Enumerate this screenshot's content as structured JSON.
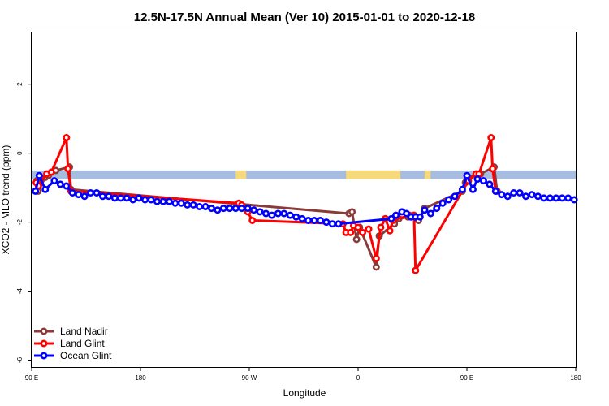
{
  "chart_data": {
    "type": "line",
    "title": "12.5N-17.5N Annual Mean (Ver 10)   2015-01-01 to 2020-12-18",
    "xlabel": "Longitude",
    "ylabel": "XCO2 - MLO trend (ppm)",
    "xlim": [
      90,
      450
    ],
    "ylim": [
      -6.2,
      3.5
    ],
    "x_ticks": [
      {
        "value": 90,
        "label": "90 E"
      },
      {
        "value": 162,
        "label": "180"
      },
      {
        "value": 234,
        "label": "90 W"
      },
      {
        "value": 306,
        "label": "0"
      },
      {
        "value": 378,
        "label": "90 E"
      },
      {
        "value": 450,
        "label": "180"
      }
    ],
    "y_ticks": [
      {
        "value": 2,
        "label": "2"
      },
      {
        "value": 0,
        "label": "0"
      },
      {
        "value": -2,
        "label": "-2"
      },
      {
        "value": -4,
        "label": "-4"
      },
      {
        "value": -6,
        "label": "-6"
      }
    ],
    "grid": false,
    "legend_position": "bottom-left",
    "land_band": {
      "y_top": -0.5,
      "y_bottom": -0.75,
      "ocean_color": "#a7bddf",
      "land_color": "#f5d97a",
      "land_x_ranges": [
        [
          225,
          232
        ],
        [
          298,
          334
        ],
        [
          350,
          354
        ]
      ]
    },
    "series": [
      {
        "name": "Land Nadir",
        "color": "#8b3a3a",
        "points": [
          [
            93.5,
            -0.8
          ],
          [
            94.2,
            -1.1
          ],
          [
            99,
            -0.7
          ],
          [
            101,
            -0.65
          ],
          [
            106,
            -0.5
          ],
          [
            115,
            -0.4
          ],
          [
            116,
            -1.05
          ],
          [
            300,
            -1.75
          ],
          [
            302,
            -1.7
          ],
          [
            305,
            -2.5
          ],
          [
            307,
            -2.15
          ],
          [
            318,
            -3.3
          ],
          [
            320,
            -2.4
          ],
          [
            330,
            -2.05
          ],
          [
            333,
            -1.9
          ],
          [
            339,
            -1.85
          ],
          [
            346,
            -1.95
          ],
          [
            350,
            -1.6
          ],
          [
            375,
            -1.1
          ],
          [
            377,
            -0.85
          ],
          [
            379,
            -0.7
          ],
          [
            385,
            -0.65
          ],
          [
            387,
            -0.6
          ],
          [
            396,
            -0.4
          ],
          [
            398,
            -1.1
          ]
        ]
      },
      {
        "name": "Land Glint",
        "color": "#ff0000",
        "points": [
          [
            93,
            -0.85
          ],
          [
            94.5,
            -0.95
          ],
          [
            100,
            -0.6
          ],
          [
            103,
            -0.55
          ],
          [
            113,
            0.45
          ],
          [
            114,
            -0.45
          ],
          [
            116,
            -1.1
          ],
          [
            227,
            -1.45
          ],
          [
            229,
            -1.5
          ],
          [
            233,
            -1.7
          ],
          [
            236,
            -1.95
          ],
          [
            296,
            -2.05
          ],
          [
            298,
            -2.3
          ],
          [
            301,
            -2.3
          ],
          [
            303,
            -2.1
          ],
          [
            306,
            -2.15
          ],
          [
            309,
            -2.3
          ],
          [
            313,
            -2.2
          ],
          [
            318,
            -3.05
          ],
          [
            321,
            -2.15
          ],
          [
            324,
            -1.9
          ],
          [
            327,
            -2.25
          ],
          [
            329,
            -1.95
          ],
          [
            340,
            -1.8
          ],
          [
            343,
            -1.8
          ],
          [
            344,
            -3.4
          ],
          [
            379,
            -0.8
          ],
          [
            384,
            -0.6
          ],
          [
            386,
            -0.6
          ],
          [
            394,
            0.45
          ],
          [
            395,
            -0.45
          ],
          [
            397,
            -1.1
          ]
        ]
      },
      {
        "name": "Ocean Glint",
        "color": "#0000ff",
        "points": [
          [
            92.5,
            -1.1
          ],
          [
            95,
            -0.65
          ],
          [
            99,
            -1.05
          ],
          [
            105,
            -0.8
          ],
          [
            109,
            -0.9
          ],
          [
            113,
            -0.95
          ],
          [
            117,
            -1.15
          ],
          [
            121,
            -1.2
          ],
          [
            125,
            -1.25
          ],
          [
            129,
            -1.15
          ],
          [
            133,
            -1.15
          ],
          [
            137,
            -1.25
          ],
          [
            141,
            -1.25
          ],
          [
            145,
            -1.3
          ],
          [
            149,
            -1.3
          ],
          [
            153,
            -1.3
          ],
          [
            157,
            -1.35
          ],
          [
            161,
            -1.3
          ],
          [
            165,
            -1.35
          ],
          [
            169,
            -1.35
          ],
          [
            173,
            -1.4
          ],
          [
            177,
            -1.4
          ],
          [
            181,
            -1.4
          ],
          [
            185,
            -1.45
          ],
          [
            189,
            -1.45
          ],
          [
            193,
            -1.5
          ],
          [
            197,
            -1.5
          ],
          [
            201,
            -1.55
          ],
          [
            205,
            -1.55
          ],
          [
            209,
            -1.6
          ],
          [
            213,
            -1.65
          ],
          [
            217,
            -1.6
          ],
          [
            221,
            -1.6
          ],
          [
            225,
            -1.6
          ],
          [
            229,
            -1.6
          ],
          [
            233,
            -1.6
          ],
          [
            237,
            -1.65
          ],
          [
            241,
            -1.7
          ],
          [
            245,
            -1.75
          ],
          [
            249,
            -1.8
          ],
          [
            253,
            -1.75
          ],
          [
            257,
            -1.75
          ],
          [
            261,
            -1.8
          ],
          [
            265,
            -1.85
          ],
          [
            269,
            -1.9
          ],
          [
            273,
            -1.95
          ],
          [
            277,
            -1.95
          ],
          [
            281,
            -1.95
          ],
          [
            285,
            -2.0
          ],
          [
            289,
            -2.05
          ],
          [
            293,
            -2.05
          ],
          [
            328,
            -1.9
          ],
          [
            331,
            -1.8
          ],
          [
            335,
            -1.7
          ],
          [
            338,
            -1.75
          ],
          [
            341,
            -1.85
          ],
          [
            344,
            -1.85
          ],
          [
            347,
            -1.85
          ],
          [
            350,
            -1.65
          ],
          [
            354,
            -1.75
          ],
          [
            358,
            -1.6
          ],
          [
            362,
            -1.45
          ],
          [
            366,
            -1.35
          ],
          [
            370,
            -1.25
          ],
          [
            375,
            -1.05
          ],
          [
            378,
            -0.65
          ],
          [
            382,
            -1.05
          ],
          [
            385,
            -0.75
          ],
          [
            389,
            -0.8
          ],
          [
            393,
            -0.9
          ],
          [
            397,
            -1.1
          ],
          [
            401,
            -1.2
          ],
          [
            405,
            -1.25
          ],
          [
            409,
            -1.15
          ],
          [
            413,
            -1.15
          ],
          [
            417,
            -1.25
          ],
          [
            421,
            -1.2
          ],
          [
            425,
            -1.25
          ],
          [
            429,
            -1.3
          ],
          [
            433,
            -1.3
          ],
          [
            437,
            -1.3
          ],
          [
            441,
            -1.3
          ],
          [
            445,
            -1.3
          ],
          [
            449,
            -1.35
          ]
        ]
      }
    ]
  }
}
